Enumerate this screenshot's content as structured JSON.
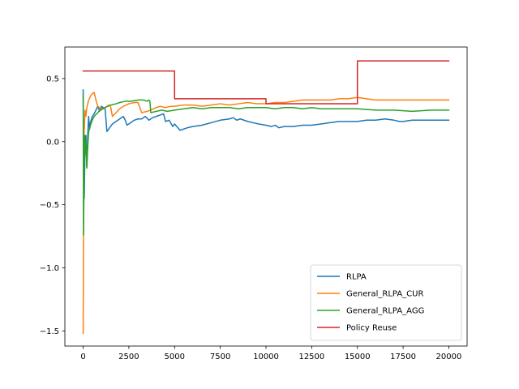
{
  "chart_data": {
    "type": "line",
    "title": "",
    "xlabel": "",
    "ylabel": "",
    "xlim": [
      -1000,
      21000
    ],
    "ylim": [
      -1.62,
      0.75
    ],
    "xticks": [
      0,
      2500,
      5000,
      7500,
      10000,
      12500,
      15000,
      17500,
      20000
    ],
    "xtick_labels": [
      "0",
      "2500",
      "5000",
      "7500",
      "10000",
      "12500",
      "15000",
      "17500",
      "20000"
    ],
    "yticks": [
      0.5,
      0.0,
      -0.5,
      -1.0,
      -1.5
    ],
    "ytick_labels": [
      "0.5",
      "0.0",
      "−0.5",
      "−1.0",
      "−1.5"
    ],
    "grid": false,
    "legend_position": "lower right",
    "series": [
      {
        "name": "RLPA",
        "color": "#1f77b4",
        "x": [
          0,
          30,
          60,
          100,
          150,
          200,
          250,
          300,
          350,
          400,
          500,
          600,
          700,
          800,
          900,
          1000,
          1100,
          1200,
          1300,
          1400,
          1500,
          1600,
          1800,
          2000,
          2200,
          2300,
          2400,
          2600,
          2800,
          3000,
          3200,
          3400,
          3600,
          3800,
          4000,
          4200,
          4400,
          4500,
          4700,
          4900,
          5000,
          5300,
          5700,
          6000,
          6500,
          7000,
          7500,
          8000,
          8200,
          8400,
          8600,
          9000,
          9300,
          9600,
          10000,
          10300,
          10500,
          10700,
          11000,
          11500,
          12000,
          12500,
          13000,
          13500,
          14000,
          14500,
          15000,
          15500,
          16000,
          16500,
          17000,
          17300,
          17500,
          18000,
          18500,
          19000,
          19500,
          20000
        ],
        "y": [
          0.41,
          -0.19,
          -0.45,
          -0.05,
          0.05,
          -0.2,
          0.05,
          0.2,
          0.1,
          0.15,
          0.2,
          0.22,
          0.25,
          0.28,
          0.24,
          0.28,
          0.27,
          0.26,
          0.08,
          0.1,
          0.12,
          0.14,
          0.16,
          0.18,
          0.2,
          0.17,
          0.13,
          0.15,
          0.17,
          0.18,
          0.18,
          0.2,
          0.17,
          0.19,
          0.2,
          0.21,
          0.22,
          0.16,
          0.17,
          0.12,
          0.14,
          0.09,
          0.11,
          0.12,
          0.13,
          0.15,
          0.17,
          0.18,
          0.19,
          0.17,
          0.18,
          0.16,
          0.15,
          0.14,
          0.13,
          0.12,
          0.13,
          0.11,
          0.12,
          0.12,
          0.13,
          0.13,
          0.14,
          0.15,
          0.16,
          0.16,
          0.16,
          0.17,
          0.17,
          0.18,
          0.17,
          0.16,
          0.16,
          0.17,
          0.17,
          0.17,
          0.17,
          0.17
        ]
      },
      {
        "name": "General_RLPA_CUR",
        "color": "#ff7f0e",
        "x": [
          0,
          20,
          50,
          100,
          150,
          200,
          300,
          400,
          500,
          600,
          700,
          800,
          900,
          1000,
          1200,
          1400,
          1500,
          1600,
          1800,
          2000,
          2200,
          2500,
          2800,
          3000,
          3200,
          3500,
          3700,
          4000,
          4200,
          4500,
          4800,
          5000,
          5500,
          6000,
          6500,
          7000,
          7500,
          8000,
          8500,
          9000,
          9500,
          10000,
          10500,
          11000,
          11500,
          12000,
          12500,
          13000,
          13500,
          14000,
          14500,
          15000,
          15500,
          16000,
          17000,
          18000,
          19000,
          20000
        ],
        "y": [
          -1.52,
          -0.7,
          0.05,
          0.25,
          0.2,
          0.27,
          0.33,
          0.36,
          0.38,
          0.39,
          0.33,
          0.28,
          0.27,
          0.25,
          0.27,
          0.29,
          0.28,
          0.2,
          0.23,
          0.26,
          0.28,
          0.3,
          0.31,
          0.31,
          0.23,
          0.24,
          0.25,
          0.27,
          0.28,
          0.27,
          0.28,
          0.28,
          0.29,
          0.29,
          0.28,
          0.29,
          0.3,
          0.29,
          0.3,
          0.31,
          0.3,
          0.3,
          0.31,
          0.31,
          0.32,
          0.33,
          0.33,
          0.33,
          0.33,
          0.34,
          0.34,
          0.35,
          0.34,
          0.33,
          0.33,
          0.33,
          0.33,
          0.33
        ]
      },
      {
        "name": "General_RLPA_AGG",
        "color": "#2ca02c",
        "x": [
          0,
          20,
          50,
          80,
          120,
          150,
          200,
          250,
          300,
          350,
          400,
          500,
          600,
          800,
          1000,
          1200,
          1500,
          1800,
          2000,
          2300,
          2600,
          3000,
          3300,
          3500,
          3600,
          3650,
          3700,
          4000,
          4300,
          4600,
          5000,
          5500,
          6000,
          6500,
          7000,
          7500,
          8000,
          8500,
          9000,
          9500,
          10000,
          10500,
          11000,
          11500,
          12000,
          12500,
          13000,
          13500,
          14000,
          15000,
          16000,
          17000,
          18000,
          19000,
          20000
        ],
        "y": [
          0.37,
          -0.74,
          -0.3,
          0.05,
          -0.1,
          0.0,
          -0.21,
          -0.05,
          0.08,
          0.1,
          0.13,
          0.17,
          0.2,
          0.23,
          0.26,
          0.27,
          0.29,
          0.3,
          0.31,
          0.32,
          0.32,
          0.33,
          0.33,
          0.32,
          0.33,
          0.32,
          0.23,
          0.24,
          0.25,
          0.24,
          0.25,
          0.26,
          0.27,
          0.26,
          0.27,
          0.27,
          0.27,
          0.26,
          0.27,
          0.27,
          0.27,
          0.26,
          0.27,
          0.27,
          0.26,
          0.27,
          0.26,
          0.26,
          0.26,
          0.26,
          0.25,
          0.25,
          0.24,
          0.25,
          0.25
        ]
      },
      {
        "name": "Policy Reuse",
        "color": "#d62728",
        "step": true,
        "x": [
          0,
          5000,
          5000,
          10000,
          10000,
          15000,
          15000,
          20000
        ],
        "y": [
          0.56,
          0.56,
          0.34,
          0.34,
          0.3,
          0.3,
          0.64,
          0.64
        ]
      }
    ]
  }
}
